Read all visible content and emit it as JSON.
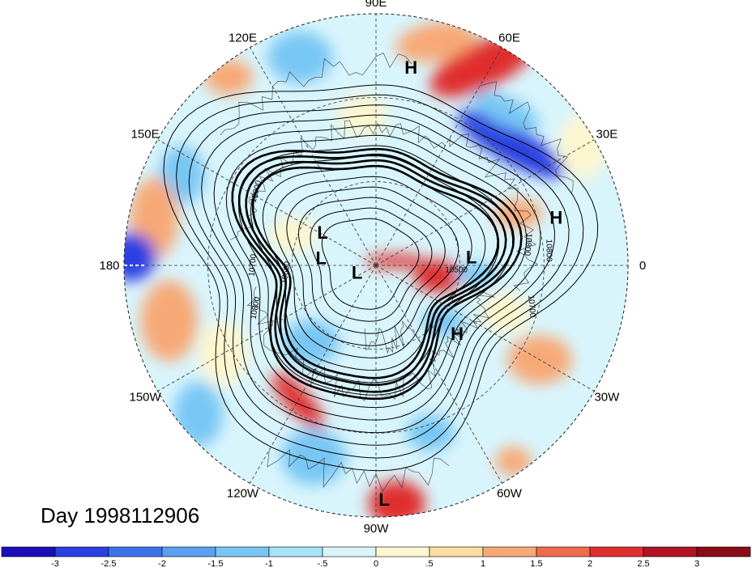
{
  "title": {
    "prefix": "Day",
    "date": "1998112906"
  },
  "longitude_labels": [
    {
      "text": "90E",
      "lon": 90
    },
    {
      "text": "60E",
      "lon": 60
    },
    {
      "text": "30E",
      "lon": 30
    },
    {
      "text": "0",
      "lon": 0
    },
    {
      "text": "30W",
      "lon": -30
    },
    {
      "text": "60W",
      "lon": -60
    },
    {
      "text": "90W",
      "lon": -90
    },
    {
      "text": "120W",
      "lon": -120
    },
    {
      "text": "150W",
      "lon": -150
    },
    {
      "text": "180",
      "lon": 180
    },
    {
      "text": "150E",
      "lon": 150
    },
    {
      "text": "120E",
      "lon": 120
    }
  ],
  "pressure_centers": [
    {
      "type": "H",
      "lon": 80,
      "lat_from_pole": 0.8
    },
    {
      "type": "H",
      "lon": 15,
      "lat_from_pole": 0.74
    },
    {
      "type": "H",
      "lon": -40,
      "lat_from_pole": 0.42
    },
    {
      "type": "L",
      "lon": 148,
      "lat_from_pole": 0.25
    },
    {
      "type": "L",
      "lon": 172,
      "lat_from_pole": 0.22
    },
    {
      "type": "L",
      "lon": -160,
      "lat_from_pole": 0.08
    },
    {
      "type": "L",
      "lon": 5,
      "lat_from_pole": 0.38
    },
    {
      "type": "L",
      "lon": -88,
      "lat_from_pole": 0.93
    }
  ],
  "contour_labels": [
    "10900",
    "10700",
    "10800",
    "10600",
    "10800",
    "10500",
    "10700",
    "10800"
  ],
  "colorbar": {
    "labels": [
      "-3",
      "-2.5",
      "-2",
      "-1.5",
      "-1",
      "-.5",
      "0",
      ".5",
      "1",
      "1.5",
      "2",
      "2.5",
      "3"
    ],
    "colors": [
      "#1a0fb8",
      "#2a40e0",
      "#3d72ec",
      "#5ba0f0",
      "#78c6f4",
      "#a4e4f8",
      "#d9f5fc",
      "#fdf6cf",
      "#fcdca0",
      "#f7a876",
      "#f06a4e",
      "#e02e2e",
      "#b11523",
      "#8a0c18"
    ]
  },
  "field_colors": {
    "strong_negative": "#2a40e0",
    "negative": "#78c6f4",
    "weak_negative": "#d9f5fc",
    "weak_positive": "#fdf6cf",
    "positive": "#f7a876",
    "strong_positive": "#e02e2e"
  }
}
